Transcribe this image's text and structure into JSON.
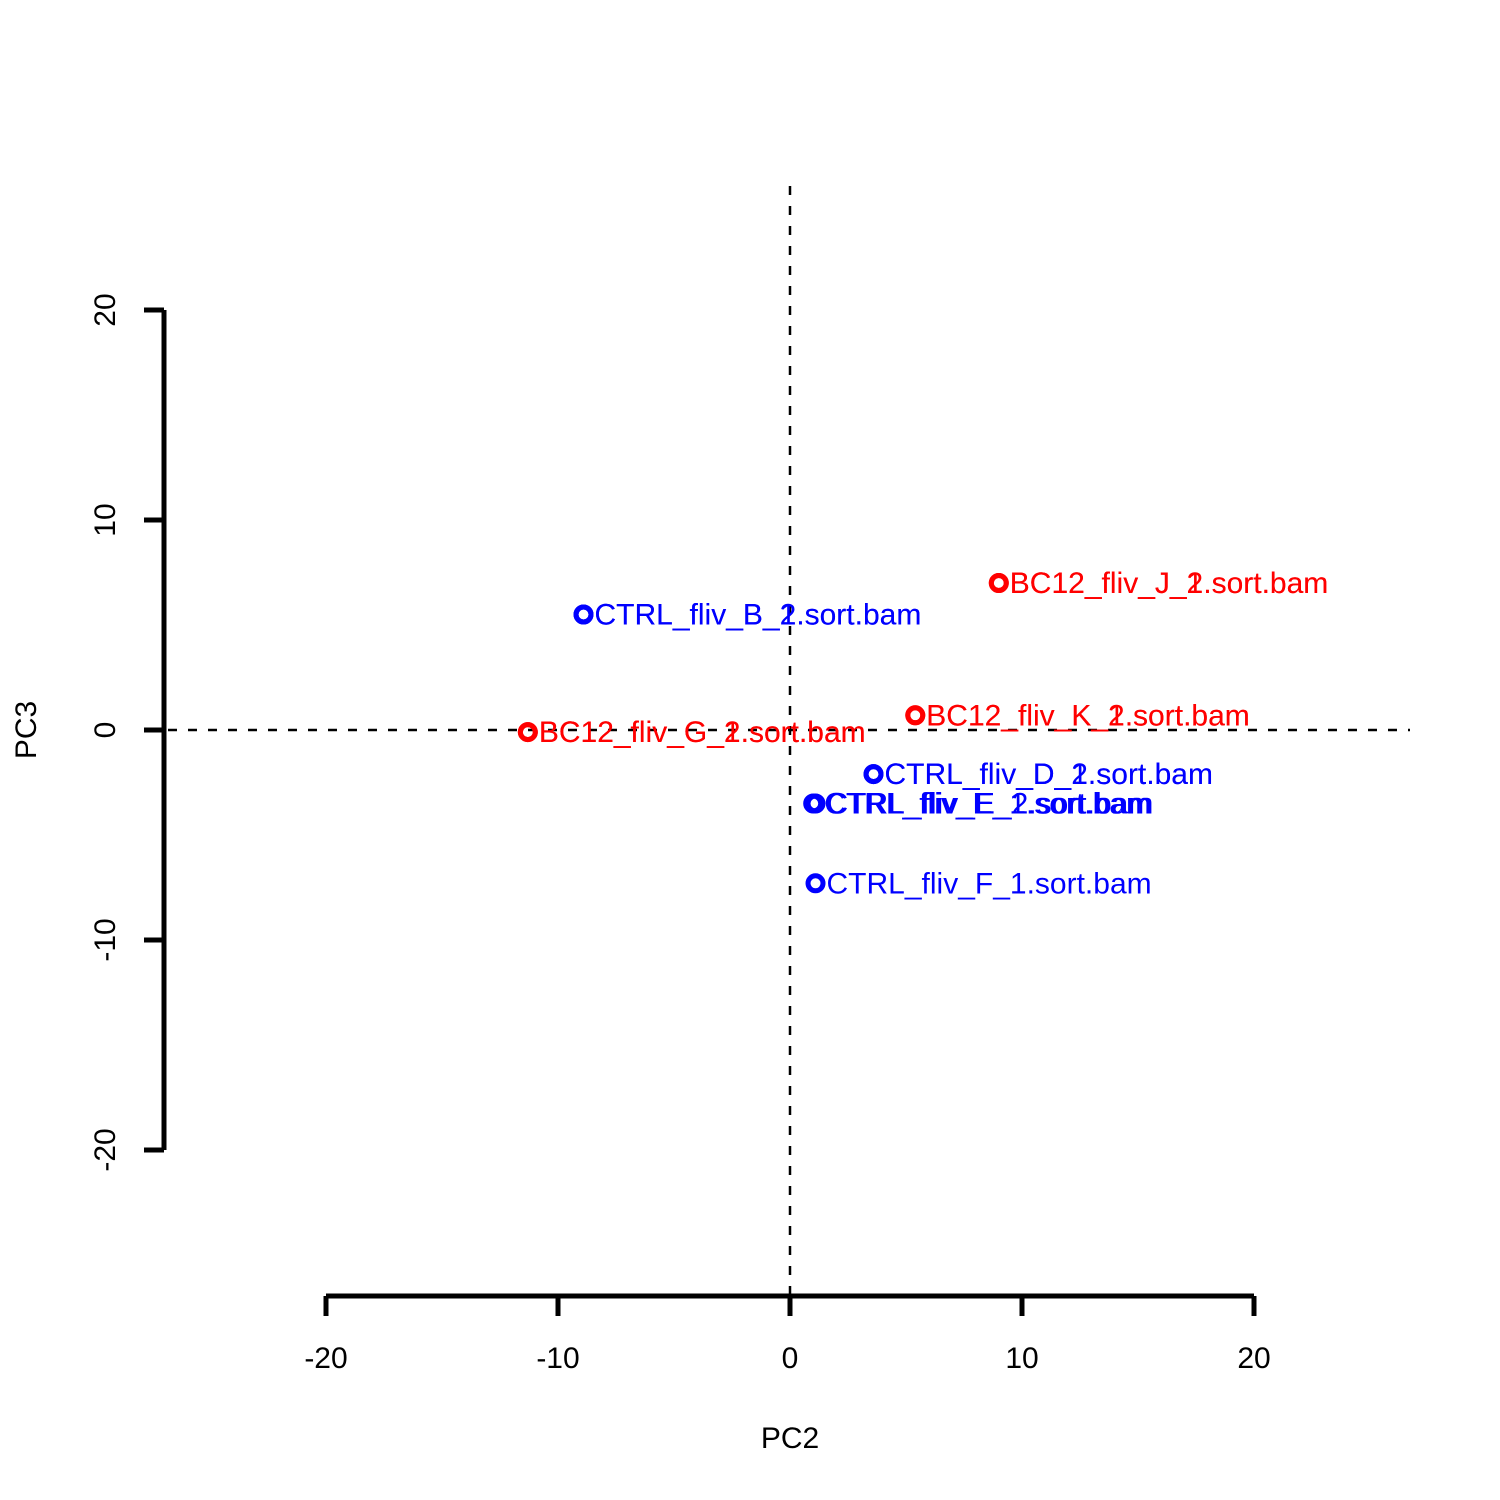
{
  "chart_data": {
    "type": "scatter",
    "title": "",
    "xlabel": "PC2",
    "ylabel": "PC3",
    "xlim": [
      -20,
      20
    ],
    "ylim": [
      -20,
      20
    ],
    "x_ticks": [
      -20,
      -10,
      0,
      10,
      20
    ],
    "y_ticks": [
      -20,
      -10,
      0,
      10,
      20
    ],
    "x_tick_labels": [
      "-20",
      "-10",
      "0",
      "10",
      "20"
    ],
    "y_tick_labels": [
      "-20",
      "-10",
      "0",
      "10",
      "20"
    ],
    "reference_lines": {
      "x": 0,
      "y": 0,
      "style": "dashed"
    },
    "colors": {
      "BC12": "#ff0000",
      "CTRL": "#0000ff",
      "axis": "#000000"
    },
    "series": [
      {
        "name": "BC12",
        "color": "#ff0000",
        "points": [
          {
            "label": "BC12_fliv_J_1.sort.bam",
            "x": 9.0,
            "y": 7.0
          },
          {
            "label": "BC12_fliv_J_2.sort.bam",
            "x": 9.0,
            "y": 7.0
          },
          {
            "label": "BC12_fliv_K_1.sort.bam",
            "x": 5.4,
            "y": 0.7
          },
          {
            "label": "BC12_fliv_K_2.sort.bam",
            "x": 5.4,
            "y": 0.7
          },
          {
            "label": "BC12_fliv_G_1.sort.bam",
            "x": -11.3,
            "y": -0.1
          },
          {
            "label": "BC12_fliv_G_2.sort.bam",
            "x": -11.3,
            "y": -0.1
          }
        ]
      },
      {
        "name": "CTRL",
        "color": "#0000ff",
        "points": [
          {
            "label": "CTRL_fliv_B_1.sort.bam",
            "x": -8.9,
            "y": 5.5
          },
          {
            "label": "CTRL_fliv_B_2.sort.bam",
            "x": -8.9,
            "y": 5.5
          },
          {
            "label": "CTRL_fliv_D_1.sort.bam",
            "x": 3.6,
            "y": -2.1
          },
          {
            "label": "CTRL_fliv_D_2.sort.bam",
            "x": 3.6,
            "y": -2.1
          },
          {
            "label": "CTRL_fliv_E_1.sort.bam",
            "x": 1.0,
            "y": -3.5
          },
          {
            "label": "CTRL_fliv_E_2.sort.bam",
            "x": 1.1,
            "y": -3.5
          },
          {
            "label": "CTRL_fliv_F_1.sort.bam",
            "x": 1.1,
            "y": -7.3
          }
        ]
      }
    ]
  }
}
